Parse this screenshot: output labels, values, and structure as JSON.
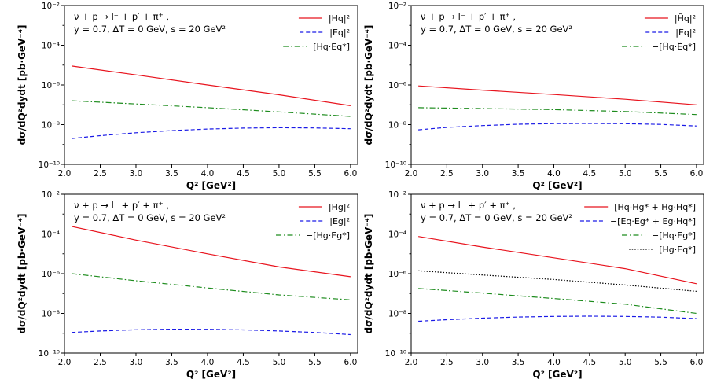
{
  "chart_data": [
    {
      "type": "line",
      "panel": "top-left",
      "xlabel": "Q² [GeV²]",
      "ylabel": "dσ/dQ²dydt [pb·GeV⁻⁴]",
      "yscale": "log",
      "xlim": [
        2.0,
        6.1
      ],
      "ylim": [
        1e-10,
        0.01
      ],
      "xticks": [
        "2.0",
        "2.5",
        "3.0",
        "3.5",
        "4.0",
        "4.5",
        "5.0",
        "5.5",
        "6.0"
      ],
      "yticks": [
        "10⁻¹⁰",
        "10⁻⁸",
        "10⁻⁶",
        "10⁻⁴",
        "10⁻²"
      ],
      "info": [
        "ν + p → l⁻ + p′ + π⁺ ,",
        "y = 0.7,    ΔT = 0 GeV,    s = 20 GeV²"
      ],
      "legend_position": "top-right",
      "series": [
        {
          "name": "|Hq|²",
          "style": "solid",
          "color": "#e8141e",
          "x": [
            2.1,
            3.0,
            4.0,
            5.0,
            6.0
          ],
          "values": [
            9e-06,
            3.2e-06,
            1e-06,
            3.2e-07,
            9e-08
          ]
        },
        {
          "name": "|Eq|²",
          "style": "dashed",
          "color": "#1a1ae6",
          "x": [
            2.1,
            2.5,
            3.0,
            3.5,
            4.0,
            4.5,
            5.0,
            5.5,
            6.0
          ],
          "values": [
            2e-09,
            2.8e-09,
            3.9e-09,
            5e-09,
            6e-09,
            6.7e-09,
            7e-09,
            6.8e-09,
            6.2e-09
          ]
        },
        {
          "name": "[Hq·Eq*]",
          "style": "dashdot",
          "color": "#1e8c1e",
          "x": [
            2.1,
            3.0,
            4.0,
            5.0,
            6.0
          ],
          "values": [
            1.6e-07,
            1.1e-07,
            7.2e-08,
            4.4e-08,
            2.6e-08
          ]
        }
      ]
    },
    {
      "type": "line",
      "panel": "top-right",
      "xlabel": "Q² [GeV²]",
      "ylabel": "dσ/dQ²dydt [pb·GeV⁻⁴]",
      "yscale": "log",
      "xlim": [
        2.0,
        6.1
      ],
      "ylim": [
        1e-10,
        0.01
      ],
      "xticks": [
        "2.0",
        "2.5",
        "3.0",
        "3.5",
        "4.0",
        "4.5",
        "5.0",
        "5.5",
        "6.0"
      ],
      "yticks": [
        "10⁻¹⁰",
        "10⁻⁸",
        "10⁻⁶",
        "10⁻⁴",
        "10⁻²"
      ],
      "info": [
        "ν + p → l⁻ + p′ + π⁺ ,",
        "y = 0.7,    ΔT = 0 GeV,    s = 20 GeV²"
      ],
      "legend_position": "top-right",
      "series": [
        {
          "name": "|H̃q|²",
          "style": "solid",
          "color": "#e8141e",
          "x": [
            2.1,
            3.0,
            4.0,
            5.0,
            6.0
          ],
          "values": [
            9e-07,
            5.5e-07,
            3.3e-07,
            1.9e-07,
            1e-07
          ]
        },
        {
          "name": "|Ẽq|²",
          "style": "dashed",
          "color": "#1a1ae6",
          "x": [
            2.1,
            2.5,
            3.0,
            3.5,
            4.0,
            4.5,
            5.0,
            5.5,
            6.0
          ],
          "values": [
            5.5e-09,
            7.3e-09,
            9e-09,
            1.05e-08,
            1.13e-08,
            1.15e-08,
            1.12e-08,
            1.03e-08,
            8.6e-09
          ]
        },
        {
          "name": "−[H̃q·Ẽq*]",
          "style": "dashdot",
          "color": "#1e8c1e",
          "x": [
            2.1,
            3.0,
            4.0,
            5.0,
            6.0
          ],
          "values": [
            7.2e-08,
            6.5e-08,
            5.7e-08,
            4.6e-08,
            3.2e-08
          ]
        }
      ]
    },
    {
      "type": "line",
      "panel": "bottom-left",
      "xlabel": "Q² [GeV²]",
      "ylabel": "dσ/dQ²dydt [pb·GeV⁻⁴]",
      "yscale": "log",
      "xlim": [
        2.0,
        6.1
      ],
      "ylim": [
        1e-10,
        0.01
      ],
      "xticks": [
        "2.0",
        "2.5",
        "3.0",
        "3.5",
        "4.0",
        "4.5",
        "5.0",
        "5.5",
        "6.0"
      ],
      "yticks": [
        "10⁻¹⁰",
        "10⁻⁸",
        "10⁻⁶",
        "10⁻⁴",
        "10⁻²"
      ],
      "info": [
        "ν + p → l⁻ + p′ + π⁺ ,",
        "y = 0.7,    ΔT = 0 GeV,    s = 20 GeV²"
      ],
      "legend_position": "top-right",
      "series": [
        {
          "name": "|Hg|²",
          "style": "solid",
          "color": "#e8141e",
          "x": [
            2.1,
            3.0,
            4.0,
            5.0,
            6.0
          ],
          "values": [
            0.00024,
            4.9e-05,
            1e-05,
            2.2e-06,
            7e-07
          ]
        },
        {
          "name": "|Eg|²",
          "style": "dashed",
          "color": "#1a1ae6",
          "x": [
            2.1,
            2.5,
            3.0,
            3.5,
            4.0,
            4.5,
            5.0,
            5.5,
            6.0
          ],
          "values": [
            1.1e-09,
            1.3e-09,
            1.5e-09,
            1.6e-09,
            1.58e-09,
            1.48e-09,
            1.3e-09,
            1.1e-09,
            8.5e-10
          ]
        },
        {
          "name": "−[Hg·Eg*]",
          "style": "dashdot",
          "color": "#1e8c1e",
          "x": [
            2.1,
            3.0,
            4.0,
            5.0,
            6.0
          ],
          "values": [
            1e-06,
            4.4e-07,
            1.9e-07,
            8.5e-08,
            4.8e-08
          ]
        }
      ]
    },
    {
      "type": "line",
      "panel": "bottom-right",
      "xlabel": "Q² [GeV²]",
      "ylabel": "dσ/dQ²dydt [pb·GeV⁻⁴]",
      "yscale": "log",
      "xlim": [
        2.0,
        6.1
      ],
      "ylim": [
        1e-10,
        0.01
      ],
      "xticks": [
        "2.0",
        "2.5",
        "3.0",
        "3.5",
        "4.0",
        "4.5",
        "5.0",
        "5.5",
        "6.0"
      ],
      "yticks": [
        "10⁻¹⁰",
        "10⁻⁸",
        "10⁻⁶",
        "10⁻⁴",
        "10⁻²"
      ],
      "info": [
        "ν + p → l⁻ + p′ + π⁺ ,",
        "y = 0.7,    ΔT = 0 GeV,    s = 20 GeV²"
      ],
      "legend_position": "top-right",
      "series": [
        {
          "name": "[Hq·Hg* + Hg·Hq*]",
          "style": "solid",
          "color": "#e8141e",
          "x": [
            2.1,
            3.0,
            4.0,
            5.0,
            6.0
          ],
          "values": [
            7.5e-05,
            2.2e-05,
            6.3e-06,
            1.8e-06,
            3.1e-07
          ]
        },
        {
          "name": "−[Eq·Eg* + Eg·Hq*]",
          "style": "dashed",
          "color": "#1a1ae6",
          "x": [
            2.1,
            2.5,
            3.0,
            3.5,
            4.0,
            4.5,
            5.0,
            5.5,
            6.0
          ],
          "values": [
            4e-09,
            4.8e-09,
            5.8e-09,
            6.6e-09,
            7.1e-09,
            7.3e-09,
            7.1e-09,
            6.5e-09,
            5.5e-09
          ]
        },
        {
          "name": "−[Hq·Eg*]",
          "style": "dashdot",
          "color": "#1e8c1e",
          "x": [
            2.1,
            3.0,
            4.0,
            5.0,
            6.0
          ],
          "values": [
            1.8e-07,
            1.05e-07,
            5.6e-08,
            2.9e-08,
            1e-08
          ]
        },
        {
          "name": "[Hg·Eq*]",
          "style": "dotted",
          "color": "#000000",
          "x": [
            2.1,
            3.0,
            4.0,
            5.0,
            6.0
          ],
          "values": [
            1.4e-06,
            8.6e-07,
            5.1e-07,
            2.7e-07,
            1.3e-07
          ]
        }
      ]
    }
  ]
}
